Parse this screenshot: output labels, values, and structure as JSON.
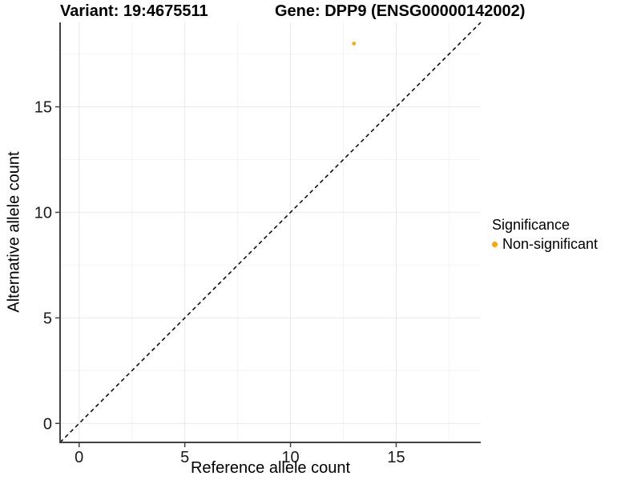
{
  "figure": {
    "title_left": "Variant: 19:4675511",
    "title_right": "Gene: DPP9 (ENSG00000142002)"
  },
  "chart_data": {
    "type": "scatter",
    "title": "Variant: 19:4675511    Gene: DPP9 (ENSG00000142002)",
    "xlabel": "Reference allele count",
    "ylabel": "Alternative allele count",
    "xlim": [
      -0.9,
      19.0
    ],
    "ylim": [
      -0.9,
      19.0
    ],
    "x_ticks": [
      0,
      5,
      10,
      15
    ],
    "y_ticks": [
      0,
      5,
      10,
      15
    ],
    "x_minor_ticks": [
      2.5,
      7.5,
      12.5,
      17.5
    ],
    "y_minor_ticks": [
      2.5,
      7.5,
      12.5,
      17.5
    ],
    "grid": "on",
    "series": [
      {
        "name": "Non-significant",
        "color": "#FFA500",
        "points": [
          {
            "x": 13,
            "y": 18
          }
        ]
      }
    ],
    "reference_line": {
      "slope": 1,
      "intercept": 0,
      "style": "dashed",
      "color": "#000000"
    },
    "legend": {
      "title": "Significance",
      "position": "right",
      "items": [
        {
          "label": "Non-significant",
          "color": "#FFA500"
        }
      ]
    },
    "style": {
      "grid_major_color": "#E8E8E8",
      "grid_minor_color": "#F4F4F4",
      "axis_line_color": "#424242",
      "tick_label_color": "#1A1A1A",
      "point_radius": 2.3
    }
  }
}
